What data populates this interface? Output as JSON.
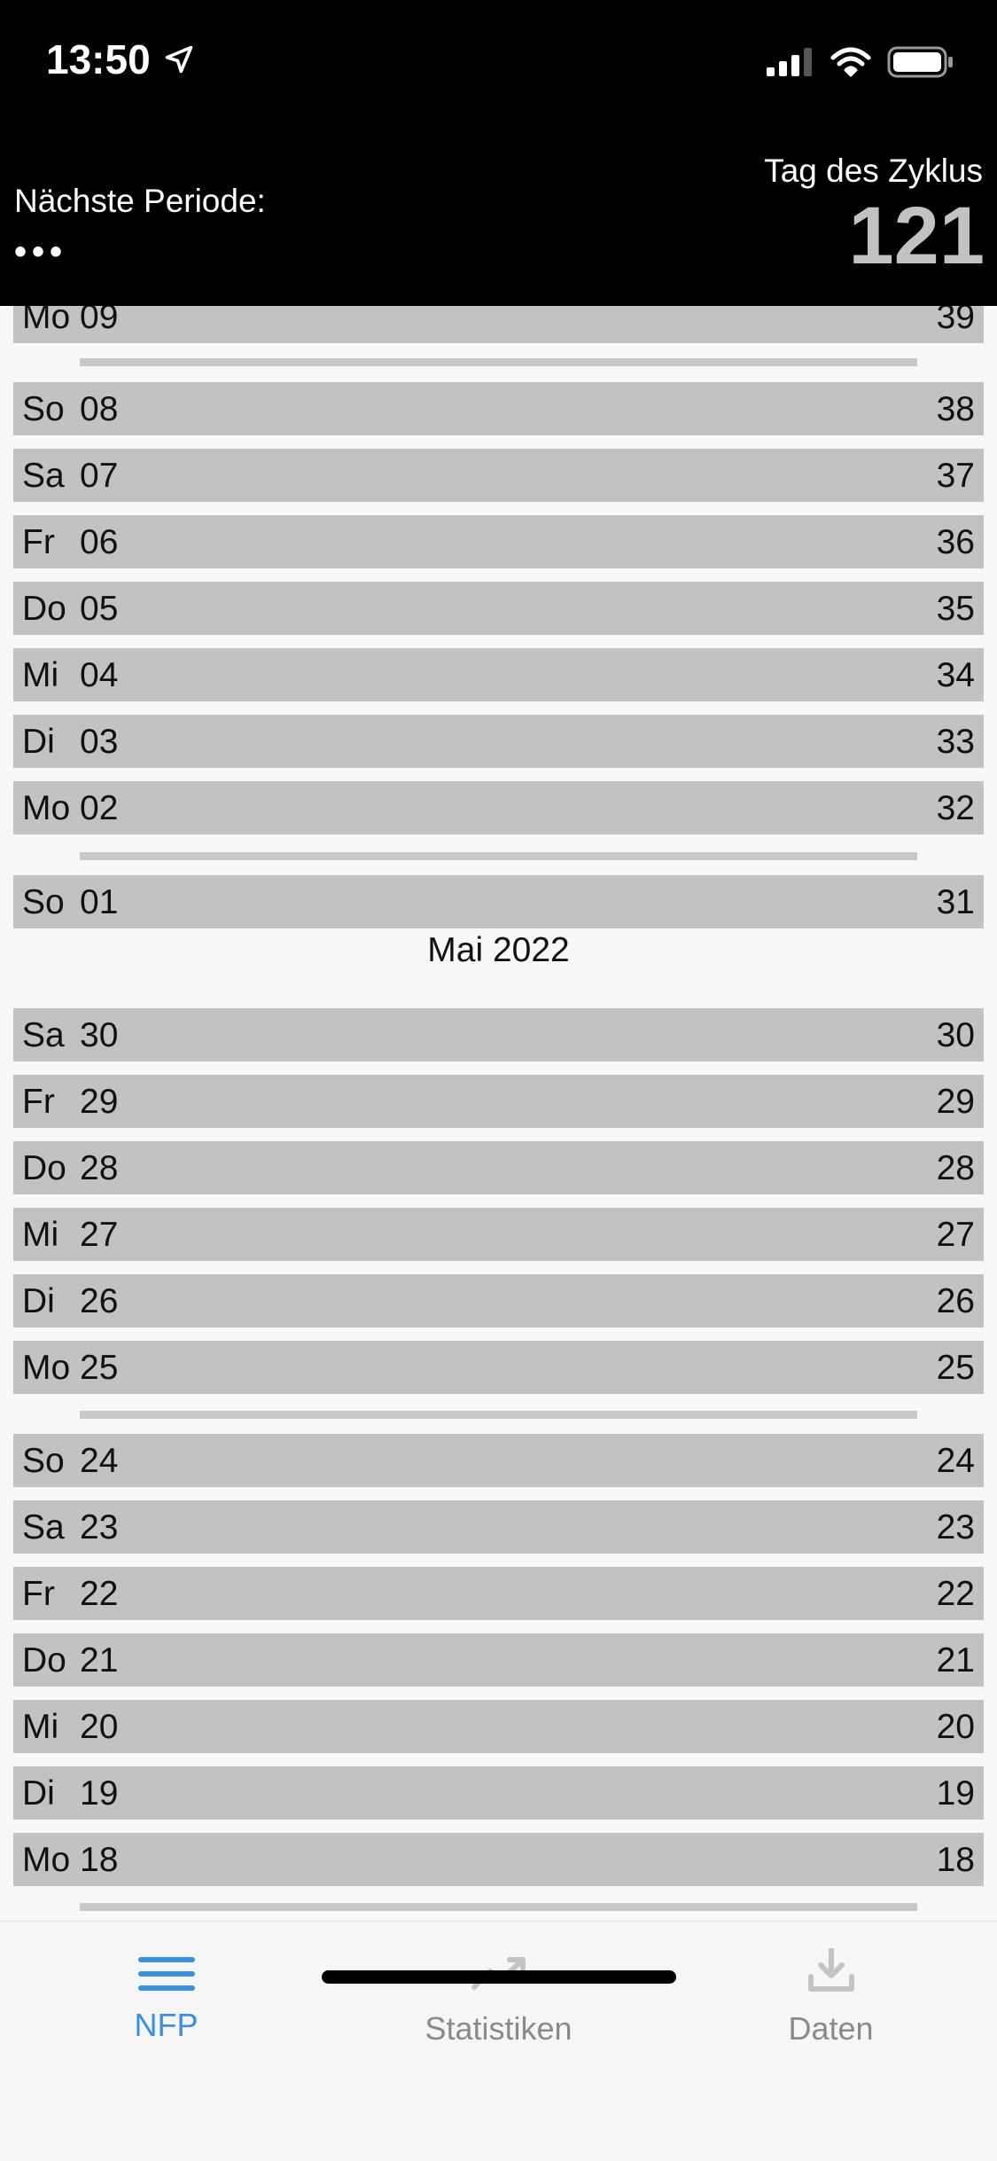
{
  "status": {
    "time": "13:50"
  },
  "header": {
    "next_period_label": "Nächste Periode:",
    "next_period_value": "•••",
    "cycle_day_label": "Tag des Zyklus",
    "cycle_day_value": "121"
  },
  "days": [
    {
      "wd": "Mo",
      "date": "09",
      "cd": "39"
    },
    {
      "wd": "So",
      "date": "08",
      "cd": "38"
    },
    {
      "wd": "Sa",
      "date": "07",
      "cd": "37"
    },
    {
      "wd": "Fr",
      "date": "06",
      "cd": "36"
    },
    {
      "wd": "Do",
      "date": "05",
      "cd": "35"
    },
    {
      "wd": "Mi",
      "date": "04",
      "cd": "34"
    },
    {
      "wd": "Di",
      "date": "03",
      "cd": "33"
    },
    {
      "wd": "Mo",
      "date": "02",
      "cd": "32"
    },
    {
      "wd": "So",
      "date": "01",
      "cd": "31"
    },
    {
      "wd": "Sa",
      "date": "30",
      "cd": "30"
    },
    {
      "wd": "Fr",
      "date": "29",
      "cd": "29"
    },
    {
      "wd": "Do",
      "date": "28",
      "cd": "28"
    },
    {
      "wd": "Mi",
      "date": "27",
      "cd": "27"
    },
    {
      "wd": "Di",
      "date": "26",
      "cd": "26"
    },
    {
      "wd": "Mo",
      "date": "25",
      "cd": "25"
    },
    {
      "wd": "So",
      "date": "24",
      "cd": "24"
    },
    {
      "wd": "Sa",
      "date": "23",
      "cd": "23"
    },
    {
      "wd": "Fr",
      "date": "22",
      "cd": "22"
    },
    {
      "wd": "Do",
      "date": "21",
      "cd": "21"
    },
    {
      "wd": "Mi",
      "date": "20",
      "cd": "20"
    },
    {
      "wd": "Di",
      "date": "19",
      "cd": "19"
    },
    {
      "wd": "Mo",
      "date": "18",
      "cd": "18"
    }
  ],
  "month_header": "Mai 2022",
  "tabs": [
    {
      "label": "NFP",
      "icon": "menu-icon",
      "active": true
    },
    {
      "label": "Statistiken",
      "icon": "trend-icon",
      "active": false
    },
    {
      "label": "Daten",
      "icon": "download-icon",
      "active": false
    }
  ],
  "colors": {
    "accent": "#3b8fe0",
    "inactive": "#8a8a8a",
    "row": "#c2c2c2"
  }
}
